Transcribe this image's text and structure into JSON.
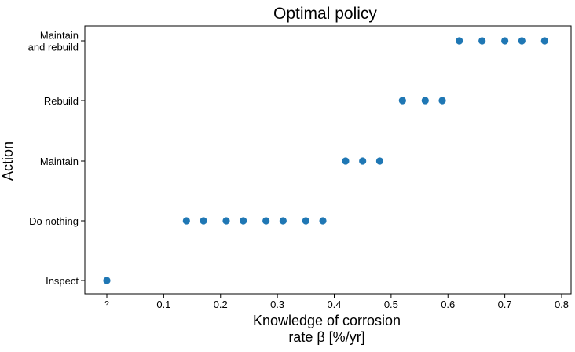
{
  "chart_data": {
    "type": "scatter",
    "title": "Optimal policy",
    "xlabel": [
      "Knowledge of corrosion",
      "rate β [%/yr]"
    ],
    "ylabel": "Action",
    "x_ticks": [
      {
        "value": 0.0,
        "label": "?"
      },
      {
        "value": 0.1,
        "label": "0.1"
      },
      {
        "value": 0.2,
        "label": "0.2"
      },
      {
        "value": 0.3,
        "label": "0.3"
      },
      {
        "value": 0.4,
        "label": "0.4"
      },
      {
        "value": 0.5,
        "label": "0.5"
      },
      {
        "value": 0.6,
        "label": "0.6"
      },
      {
        "value": 0.7,
        "label": "0.7"
      },
      {
        "value": 0.8,
        "label": "0.8"
      }
    ],
    "categories": [
      [
        "Inspect"
      ],
      [
        "Do nothing"
      ],
      [
        "Maintain"
      ],
      [
        "Rebuild"
      ],
      [
        "Maintain",
        "and rebuild"
      ]
    ],
    "xlim": [
      -0.1,
      0.81
    ],
    "grid": false,
    "marker_color": "#1f77b4",
    "points": [
      {
        "x": 0.0,
        "y": 0
      },
      {
        "x": 0.14,
        "y": 1
      },
      {
        "x": 0.17,
        "y": 1
      },
      {
        "x": 0.21,
        "y": 1
      },
      {
        "x": 0.24,
        "y": 1
      },
      {
        "x": 0.28,
        "y": 1
      },
      {
        "x": 0.31,
        "y": 1
      },
      {
        "x": 0.35,
        "y": 1
      },
      {
        "x": 0.38,
        "y": 1
      },
      {
        "x": 0.42,
        "y": 2
      },
      {
        "x": 0.45,
        "y": 2
      },
      {
        "x": 0.48,
        "y": 2
      },
      {
        "x": 0.52,
        "y": 3
      },
      {
        "x": 0.56,
        "y": 3
      },
      {
        "x": 0.59,
        "y": 3
      },
      {
        "x": 0.62,
        "y": 4
      },
      {
        "x": 0.66,
        "y": 4
      },
      {
        "x": 0.7,
        "y": 4
      },
      {
        "x": 0.73,
        "y": 4
      },
      {
        "x": 0.77,
        "y": 4
      }
    ]
  }
}
